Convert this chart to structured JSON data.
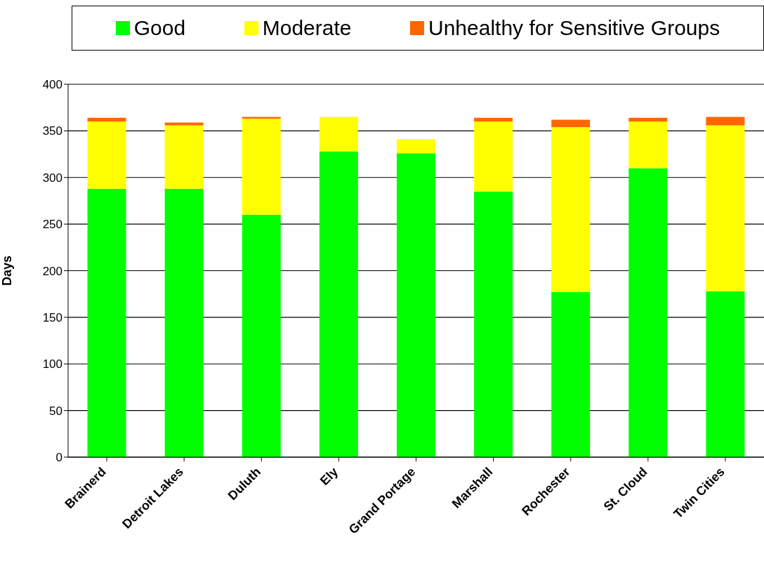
{
  "chart_data": {
    "type": "bar",
    "stacked": true,
    "ylabel": "Days",
    "categories": [
      "Brainerd",
      "Detroit Lakes",
      "Duluth",
      "Ely",
      "Grand Portage",
      "Marshall",
      "Rochester",
      "St. Cloud",
      "Twin Cities"
    ],
    "series": [
      {
        "name": "Good",
        "color": "#00ff00",
        "values": [
          288,
          288,
          260,
          328,
          326,
          285,
          177,
          310,
          178
        ]
      },
      {
        "name": "Moderate",
        "color": "#ffff00",
        "values": [
          72,
          68,
          103,
          37,
          15,
          75,
          177,
          50,
          178
        ]
      },
      {
        "name": "Unhealthy for Sensitive Groups",
        "color": "#ff6600",
        "values": [
          4,
          3,
          2,
          0,
          0,
          4,
          8,
          4,
          9
        ]
      }
    ],
    "ylim": [
      0,
      400
    ],
    "yticks": [
      0,
      50,
      100,
      150,
      200,
      250,
      300,
      350,
      400
    ],
    "grid": "y",
    "legend": "top"
  }
}
